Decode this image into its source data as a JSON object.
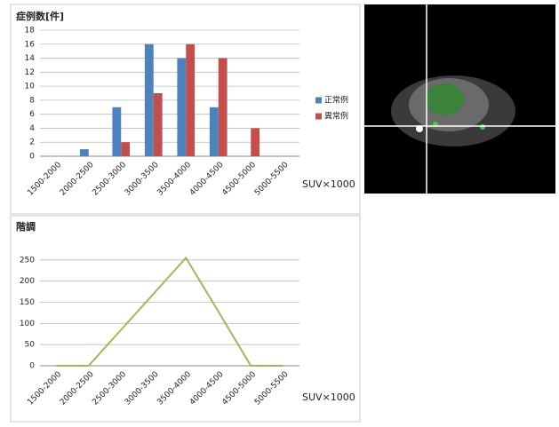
{
  "chart_data": [
    {
      "type": "bar",
      "title": "症例数[件]",
      "x_label": "SUV×1000",
      "categories": [
        "1500-2000",
        "2000-2500",
        "2500-3000",
        "3000-3500",
        "3500-4000",
        "4000-4500",
        "4500-5000",
        "5000-5500"
      ],
      "series": [
        {
          "name": "正常例",
          "color": "#4f81bd",
          "values": [
            0,
            1,
            7,
            16,
            14,
            7,
            0,
            0
          ]
        },
        {
          "name": "異常例",
          "color": "#c0504d",
          "values": [
            0,
            0,
            2,
            9,
            16,
            14,
            4,
            0
          ]
        }
      ],
      "ylim": [
        0,
        18
      ],
      "yticks": [
        0,
        2,
        4,
        6,
        8,
        10,
        12,
        14,
        16,
        18
      ],
      "grid": true,
      "legend": "right"
    },
    {
      "type": "line",
      "title": "階調",
      "x_label": "SUV×1000",
      "categories": [
        "1500-2000",
        "2000-2500",
        "2500-3000",
        "3000-3500",
        "3500-4000",
        "4000-4500",
        "4500-5000",
        "5000-5500"
      ],
      "series": [
        {
          "name": "階調",
          "color": "#9bbb59",
          "values": [
            0,
            0,
            85,
            170,
            255,
            128,
            0,
            0
          ]
        }
      ],
      "ylim": [
        0,
        300
      ],
      "yticks": [
        0,
        50,
        100,
        150,
        200,
        250
      ],
      "grid": true
    }
  ]
}
